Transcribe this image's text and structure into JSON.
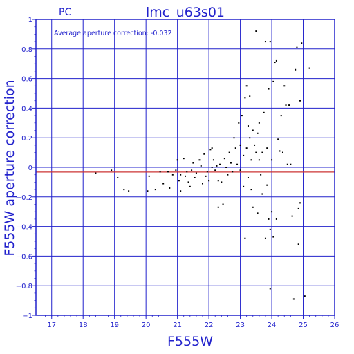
{
  "chart_data": {
    "type": "scatter",
    "instrument_label": "PC",
    "title": "lmc_u63s01",
    "xlabel": "F555W",
    "ylabel": "F555W aperture correction",
    "annotation": "Average aperture correction: -0.032",
    "average_correction": -0.032,
    "xlim": [
      16.5,
      26
    ],
    "ylim": [
      -1,
      1
    ],
    "x_ticks": [
      17,
      18,
      19,
      20,
      21,
      22,
      23,
      24,
      25,
      26
    ],
    "y_ticks": [
      -1,
      -0.8,
      -0.6,
      -0.4,
      -0.2,
      0,
      0.2,
      0.4,
      0.6,
      0.8,
      1
    ],
    "grid": true,
    "colors": {
      "axis": "#2222cc",
      "average_line": "#cc3333",
      "points": "#000000"
    },
    "points": [
      [
        18.4,
        -0.04
      ],
      [
        18.9,
        -0.02
      ],
      [
        19.1,
        -0.07
      ],
      [
        19.3,
        -0.15
      ],
      [
        19.45,
        -0.16
      ],
      [
        20.05,
        -0.16
      ],
      [
        20.1,
        -0.06
      ],
      [
        20.3,
        -0.15
      ],
      [
        20.45,
        -0.03
      ],
      [
        20.55,
        -0.11
      ],
      [
        20.7,
        -0.03
      ],
      [
        20.75,
        -0.14
      ],
      [
        20.85,
        -0.05
      ],
      [
        20.95,
        -0.02
      ],
      [
        21.0,
        0.05
      ],
      [
        21.05,
        -0.09
      ],
      [
        21.1,
        -0.16
      ],
      [
        21.1,
        -0.05
      ],
      [
        21.2,
        0.06
      ],
      [
        21.25,
        -0.06
      ],
      [
        21.3,
        -0.03
      ],
      [
        21.35,
        -0.1
      ],
      [
        21.4,
        -0.13
      ],
      [
        21.45,
        -0.02
      ],
      [
        21.5,
        0.03
      ],
      [
        21.55,
        -0.07
      ],
      [
        21.6,
        -0.04
      ],
      [
        21.7,
        0.05
      ],
      [
        21.75,
        0.01
      ],
      [
        21.8,
        -0.11
      ],
      [
        21.85,
        0.09
      ],
      [
        21.9,
        -0.06
      ],
      [
        21.95,
        -0.03
      ],
      [
        22.0,
        -0.09
      ],
      [
        22.05,
        0.12
      ],
      [
        22.1,
        0.13
      ],
      [
        22.1,
        0.0
      ],
      [
        22.15,
        0.05
      ],
      [
        22.2,
        -0.02
      ],
      [
        22.25,
        0.01
      ],
      [
        22.3,
        -0.09
      ],
      [
        22.3,
        -0.27
      ],
      [
        22.35,
        0.02
      ],
      [
        22.4,
        -0.1
      ],
      [
        22.45,
        -0.25
      ],
      [
        22.5,
        0.06
      ],
      [
        22.55,
        0.0
      ],
      [
        22.6,
        -0.05
      ],
      [
        22.65,
        0.1
      ],
      [
        22.7,
        0.03
      ],
      [
        22.75,
        -0.03
      ],
      [
        22.8,
        0.2
      ],
      [
        22.85,
        0.13
      ],
      [
        22.9,
        0.02
      ],
      [
        22.95,
        0.3
      ],
      [
        23.0,
        0.15
      ],
      [
        23.0,
        -0.02
      ],
      [
        23.05,
        0.35
      ],
      [
        23.1,
        0.08
      ],
      [
        23.1,
        -0.13
      ],
      [
        23.15,
        0.47
      ],
      [
        23.15,
        -0.48
      ],
      [
        23.2,
        0.55
      ],
      [
        23.2,
        0.13
      ],
      [
        23.25,
        0.28
      ],
      [
        23.25,
        -0.07
      ],
      [
        23.3,
        0.48
      ],
      [
        23.3,
        0.2
      ],
      [
        23.35,
        -0.15
      ],
      [
        23.35,
        0.05
      ],
      [
        23.4,
        0.25
      ],
      [
        23.4,
        -0.27
      ],
      [
        23.45,
        0.15
      ],
      [
        23.5,
        0.92
      ],
      [
        23.5,
        0.1
      ],
      [
        23.55,
        0.23
      ],
      [
        23.55,
        -0.31
      ],
      [
        23.6,
        0.05
      ],
      [
        23.6,
        0.3
      ],
      [
        23.65,
        -0.05
      ],
      [
        23.7,
        0.1
      ],
      [
        23.7,
        -0.18
      ],
      [
        23.75,
        0.37
      ],
      [
        23.8,
        0.85
      ],
      [
        23.8,
        -0.48
      ],
      [
        23.85,
        0.13
      ],
      [
        23.85,
        -0.12
      ],
      [
        23.9,
        0.53
      ],
      [
        23.9,
        -0.35
      ],
      [
        23.95,
        0.85
      ],
      [
        23.95,
        -0.42
      ],
      [
        23.95,
        -0.82
      ],
      [
        24.0,
        -0.3
      ],
      [
        24.0,
        0.05
      ],
      [
        24.05,
        -0.47
      ],
      [
        24.05,
        0.58
      ],
      [
        24.1,
        0.71
      ],
      [
        24.15,
        0.72
      ],
      [
        24.15,
        -0.35
      ],
      [
        24.2,
        0.19
      ],
      [
        24.25,
        0.11
      ],
      [
        24.3,
        0.35
      ],
      [
        24.35,
        0.1
      ],
      [
        24.4,
        0.55
      ],
      [
        24.45,
        0.42
      ],
      [
        24.5,
        0.02
      ],
      [
        24.55,
        0.42
      ],
      [
        24.6,
        0.02
      ],
      [
        24.65,
        -0.33
      ],
      [
        24.7,
        -0.89
      ],
      [
        24.75,
        0.66
      ],
      [
        24.8,
        0.81
      ],
      [
        24.85,
        -0.52
      ],
      [
        24.85,
        -0.28
      ],
      [
        24.9,
        0.45
      ],
      [
        24.9,
        -0.24
      ],
      [
        24.95,
        0.84
      ],
      [
        25.05,
        -0.87
      ],
      [
        25.2,
        0.67
      ]
    ]
  }
}
